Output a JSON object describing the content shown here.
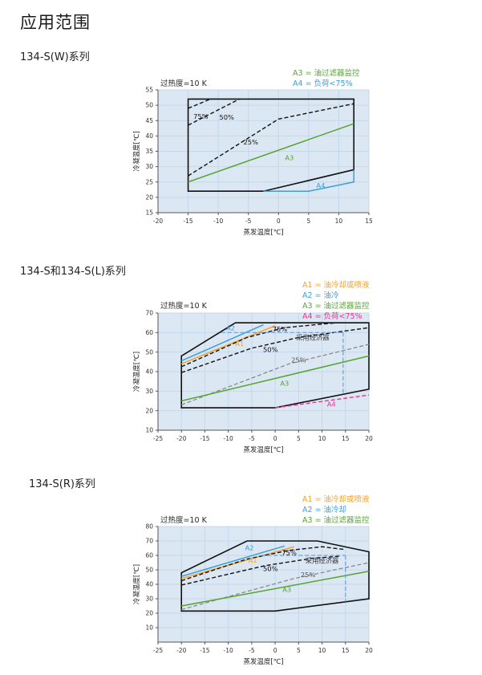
{
  "page": {
    "title": "应用范围"
  },
  "sections": [
    {
      "heading": "134-S(W)系列"
    },
    {
      "heading": "134-S和134-S(L)系列"
    },
    {
      "heading": "134-S(R)系列"
    }
  ],
  "chart_data": [
    {
      "type": "line",
      "title": "134-S(W)系列 应用范围",
      "note": "过热度=10 K",
      "xlabel": "蒸发温度[℃]",
      "ylabel": "冷凝温度[℃]",
      "xlim": [
        -20,
        15
      ],
      "ylim": [
        15,
        55
      ],
      "xticks": [
        -20,
        -15,
        -10,
        -5,
        0,
        5,
        10,
        15
      ],
      "yticks": [
        15,
        20,
        25,
        30,
        35,
        40,
        45,
        50,
        55
      ],
      "grid": true,
      "plot_bg": "#dbe7f3",
      "grid_color": "#c5d8ea",
      "envelope": {
        "name": "运行范围",
        "color": "#111111",
        "points": [
          [
            -15,
            22
          ],
          [
            -15,
            52
          ],
          [
            12.5,
            52
          ],
          [
            12.5,
            29
          ],
          [
            -2.5,
            22
          ]
        ]
      },
      "lines": [
        {
          "name": "75%",
          "style": "dashed",
          "color": "#111111",
          "width": 1.4,
          "points": [
            [
              -15,
              49
            ],
            [
              -11.3,
              52
            ]
          ]
        },
        {
          "name": "50%",
          "style": "dashed",
          "color": "#111111",
          "width": 1.4,
          "points": [
            [
              -15,
              43.5
            ],
            [
              -6.5,
              52
            ]
          ]
        },
        {
          "name": "25%",
          "style": "dashed",
          "color": "#111111",
          "width": 1.4,
          "points": [
            [
              -15,
              27
            ],
            [
              0,
              45.5
            ],
            [
              12.5,
              50.5
            ]
          ]
        },
        {
          "name": "A3",
          "style": "solid",
          "color": "#56a431",
          "width": 1.5,
          "points": [
            [
              -15,
              25
            ],
            [
              12.5,
              44
            ]
          ]
        },
        {
          "name": "A4",
          "style": "solid",
          "color": "#3b9ede",
          "width": 1.5,
          "points": [
            [
              -2.5,
              22
            ],
            [
              5,
              22
            ],
            [
              12.5,
              25
            ],
            [
              12.5,
              29
            ]
          ]
        }
      ],
      "labels": [
        {
          "text": "75%",
          "x": -12.9,
          "y": 46.3,
          "color": "#111111"
        },
        {
          "text": "50%",
          "x": -8.6,
          "y": 46.0,
          "color": "#111111"
        },
        {
          "text": "25%",
          "x": -4.6,
          "y": 38.0,
          "color": "#111111"
        },
        {
          "text": "A3",
          "x": 1.8,
          "y": 32.8,
          "color": "#56a431"
        },
        {
          "text": "A4",
          "x": 7.0,
          "y": 23.8,
          "color": "#3b9ede"
        }
      ],
      "legend": [
        {
          "text": "A3 = 油过滤器监控",
          "color": "#56a431"
        },
        {
          "text": "A4 = 负荷<75%",
          "color": "#3b9ede"
        }
      ]
    },
    {
      "type": "line",
      "title": "134-S和134-S(L)系列 应用范围",
      "note": "过热度=10 K",
      "xlabel": "蒸发温度[℃]",
      "ylabel": "冷凝温度[℃]",
      "xlim": [
        -25,
        20
      ],
      "ylim": [
        10,
        70
      ],
      "xticks": [
        -25,
        -20,
        -15,
        -10,
        -5,
        0,
        5,
        10,
        15,
        20
      ],
      "yticks": [
        10,
        20,
        30,
        40,
        50,
        60,
        70
      ],
      "grid": true,
      "plot_bg": "#dbe7f3",
      "grid_color": "#c5d8ea",
      "envelope": {
        "name": "运行范围",
        "color": "#111111",
        "points": [
          [
            -20,
            21.5
          ],
          [
            -20,
            48
          ],
          [
            -8.5,
            65
          ],
          [
            20,
            65
          ],
          [
            20,
            31
          ],
          [
            0,
            21.5
          ]
        ]
      },
      "lines": [
        {
          "name": "A2",
          "style": "solid",
          "color": "#3b9ede",
          "width": 1.5,
          "points": [
            [
              -20,
              45.5
            ],
            [
              -2.5,
              64
            ]
          ]
        },
        {
          "name": "A1",
          "style": "solid",
          "color": "#f5a02a",
          "width": 1.5,
          "points": [
            [
              -20,
              44
            ],
            [
              0,
              63.5
            ]
          ]
        },
        {
          "name": "75%",
          "style": "dashed",
          "color": "#111111",
          "width": 1.4,
          "points": [
            [
              -20,
              42.5
            ],
            [
              -6,
              57.5
            ],
            [
              2,
              62.5
            ],
            [
              13,
              65
            ]
          ]
        },
        {
          "name": "50%",
          "style": "dashed",
          "color": "#111111",
          "width": 1.4,
          "points": [
            [
              -20,
              39.5
            ],
            [
              -5,
              52
            ],
            [
              5,
              57.5
            ],
            [
              20,
              62.5
            ]
          ]
        },
        {
          "name": "25%",
          "style": "dashed",
          "color": "#8a8a8a",
          "width": 1.3,
          "points": [
            [
              -20,
              23
            ],
            [
              3,
              44
            ],
            [
              20,
              54
            ]
          ]
        },
        {
          "name": "A3",
          "style": "solid",
          "color": "#56a431",
          "width": 1.5,
          "points": [
            [
              -20,
              25
            ],
            [
              20,
              48
            ]
          ]
        },
        {
          "name": "A4",
          "style": "dashed",
          "color": "#ef328f",
          "width": 1.4,
          "points": [
            [
              0,
              21.5
            ],
            [
              20,
              28
            ]
          ]
        },
        {
          "name": "经济器边界-水平",
          "style": "dashed",
          "color": "#6f9fd8",
          "width": 1.2,
          "points": [
            [
              -11.5,
              60
            ],
            [
              14.5,
              60
            ]
          ]
        },
        {
          "name": "经济器边界-垂直",
          "style": "dashed",
          "color": "#6f9fd8",
          "width": 1.2,
          "points": [
            [
              14.5,
              60
            ],
            [
              14.5,
              28.4
            ]
          ]
        }
      ],
      "labels": [
        {
          "text": "A2",
          "x": -9.5,
          "y": 62.3,
          "color": "#3b9ede"
        },
        {
          "text": "A1",
          "x": -7.6,
          "y": 54.3,
          "color": "#f5a02a"
        },
        {
          "text": "75%",
          "x": 1.0,
          "y": 61.8,
          "color": "#111111"
        },
        {
          "text": "50%",
          "x": -1.0,
          "y": 51.3,
          "color": "#111111"
        },
        {
          "text": "25%",
          "x": 5.0,
          "y": 45.8,
          "color": "#555555"
        },
        {
          "text": "采用经济器",
          "x": 8.0,
          "y": 57.3,
          "color": "#333333"
        },
        {
          "text": "A3",
          "x": 2.0,
          "y": 34.0,
          "color": "#56a431"
        },
        {
          "text": "A4",
          "x": 12.0,
          "y": 23.2,
          "color": "#ef328f"
        }
      ],
      "legend": [
        {
          "text": "A1 = 油冷却或喷液",
          "color": "#f5a02a"
        },
        {
          "text": "A2 = 油冷",
          "color": "#3b9ede"
        },
        {
          "text": "A3 = 油过滤器监控",
          "color": "#56a431"
        },
        {
          "text": "A4 = 负荷<75%",
          "color": "#ef328f"
        }
      ]
    },
    {
      "type": "line",
      "title": "134-S(R)系列 应用范围",
      "note": "过热度=10 K",
      "xlabel": "蒸发温度[℃]",
      "ylabel": "冷凝温度[℃]",
      "xlim": [
        -25,
        20
      ],
      "ylim": [
        0,
        80
      ],
      "xticks": [
        -25,
        -20,
        -15,
        -10,
        -5,
        0,
        5,
        10,
        15,
        20
      ],
      "yticks": [
        10,
        20,
        30,
        40,
        50,
        60,
        70,
        80
      ],
      "grid": true,
      "plot_bg": "#dbe7f3",
      "grid_color": "#c5d8ea",
      "envelope": {
        "name": "运行范围",
        "color": "#111111",
        "points": [
          [
            -20,
            21.5
          ],
          [
            -20,
            48
          ],
          [
            -6,
            70
          ],
          [
            9,
            70
          ],
          [
            20,
            62.5
          ],
          [
            20,
            30
          ],
          [
            0,
            21.5
          ]
        ]
      },
      "lines": [
        {
          "name": "A2",
          "style": "solid",
          "color": "#3b9ede",
          "width": 1.5,
          "points": [
            [
              -20,
              45.5
            ],
            [
              2,
              66.5
            ]
          ]
        },
        {
          "name": "A1",
          "style": "solid",
          "color": "#f5a02a",
          "width": 1.5,
          "points": [
            [
              -20,
              44
            ],
            [
              4,
              66
            ]
          ]
        },
        {
          "name": "75%",
          "style": "dashed",
          "color": "#111111",
          "width": 1.4,
          "points": [
            [
              -20,
              42.5
            ],
            [
              -6,
              57.5
            ],
            [
              3,
              63.5
            ],
            [
              10,
              66
            ],
            [
              15,
              64
            ]
          ]
        },
        {
          "name": "50%",
          "style": "dashed",
          "color": "#111111",
          "width": 1.4,
          "points": [
            [
              -20,
              39.5
            ],
            [
              -2,
              53
            ],
            [
              8,
              58
            ],
            [
              14,
              59.5
            ]
          ]
        },
        {
          "name": "25%",
          "style": "dashed",
          "color": "#8a8a8a",
          "width": 1.3,
          "points": [
            [
              -20,
              22.5
            ],
            [
              4,
              44
            ],
            [
              20,
              55
            ]
          ]
        },
        {
          "name": "A3",
          "style": "solid",
          "color": "#56a431",
          "width": 1.5,
          "points": [
            [
              -20,
              25
            ],
            [
              20,
              49
            ]
          ]
        },
        {
          "name": "经济器边界-水平",
          "style": "dashed",
          "color": "#6f9fd8",
          "width": 1.2,
          "points": [
            [
              -3,
              60
            ],
            [
              15,
              60
            ]
          ]
        },
        {
          "name": "经济器边界-垂直",
          "style": "dashed",
          "color": "#6f9fd8",
          "width": 1.2,
          "points": [
            [
              15,
              60
            ],
            [
              15,
              27.9
            ]
          ]
        }
      ],
      "labels": [
        {
          "text": "A2",
          "x": -5.5,
          "y": 65.2,
          "color": "#3b9ede"
        },
        {
          "text": "A1",
          "x": -4.8,
          "y": 56.5,
          "color": "#f5a02a"
        },
        {
          "text": "75%",
          "x": 3.0,
          "y": 61.8,
          "color": "#111111"
        },
        {
          "text": "50%",
          "x": -1.0,
          "y": 50.8,
          "color": "#111111"
        },
        {
          "text": "25%",
          "x": 7.0,
          "y": 46.5,
          "color": "#555555"
        },
        {
          "text": "采用经济器",
          "x": 10.0,
          "y": 56.2,
          "color": "#333333"
        },
        {
          "text": "A3",
          "x": 2.5,
          "y": 36.3,
          "color": "#56a431"
        }
      ],
      "legend": [
        {
          "text": "A1 = 油冷却或喷液",
          "color": "#f5a02a"
        },
        {
          "text": "A2 = 油冷却",
          "color": "#3b9ede"
        },
        {
          "text": "A3 = 油过滤器监控",
          "color": "#56a431"
        }
      ]
    }
  ]
}
